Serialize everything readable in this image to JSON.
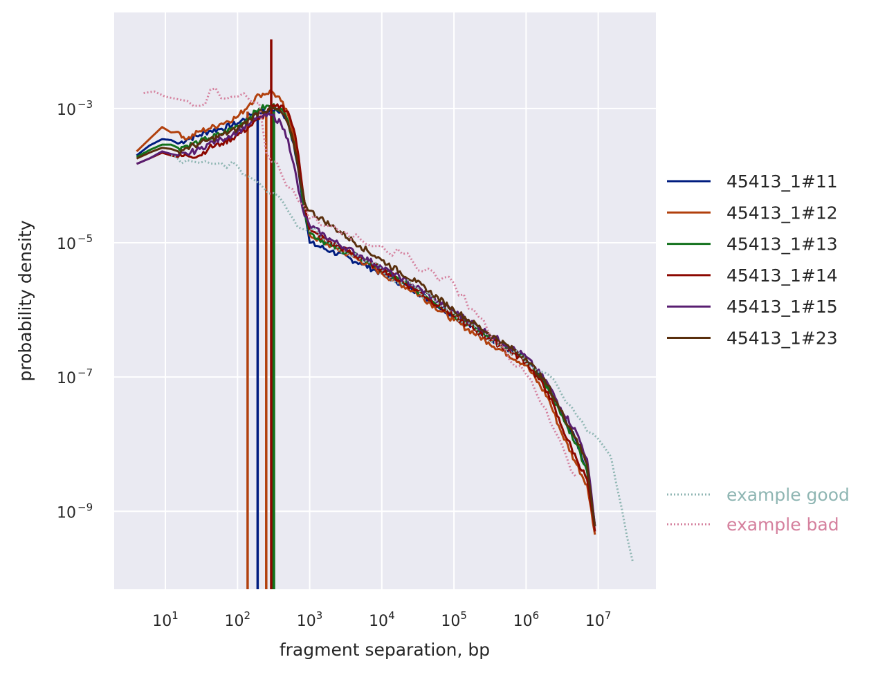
{
  "chart_data": {
    "type": "line",
    "title": "",
    "xlabel": "fragment separation, bp",
    "ylabel": "probability density",
    "xscale": "log",
    "yscale": "log",
    "xlim": [
      1.95,
      63000000
    ],
    "ylim": [
      6.9e-11,
      0.027
    ],
    "grid": true,
    "legend_position": "right",
    "x_ticks": [
      {
        "value": 10,
        "base": "10",
        "exp": "1"
      },
      {
        "value": 100,
        "base": "10",
        "exp": "2"
      },
      {
        "value": 1000,
        "base": "10",
        "exp": "3"
      },
      {
        "value": 10000,
        "base": "10",
        "exp": "4"
      },
      {
        "value": 100000,
        "base": "10",
        "exp": "5"
      },
      {
        "value": 1000000,
        "base": "10",
        "exp": "6"
      },
      {
        "value": 10000000,
        "base": "10",
        "exp": "7"
      }
    ],
    "y_ticks": [
      {
        "value": 0.001,
        "base": "10",
        "exp": "−3"
      },
      {
        "value": 1e-05,
        "base": "10",
        "exp": "−5"
      },
      {
        "value": 1e-07,
        "base": "10",
        "exp": "−7"
      },
      {
        "value": 1e-09,
        "base": "10",
        "exp": "−9"
      }
    ],
    "series": [
      {
        "name": "45413_1#11",
        "color": "#001c7f",
        "style": "solid",
        "x": [
          4,
          6,
          9,
          12,
          15,
          20,
          30,
          40,
          60,
          100,
          150,
          200,
          300,
          400,
          500,
          600,
          700,
          850,
          1000,
          2000,
          5000,
          10000,
          30000,
          100000,
          300000,
          1000000,
          2000000,
          3000000,
          5000000,
          7000000,
          9000000
        ],
        "y": [
          0.0002,
          0.00028,
          0.00035,
          0.00034,
          0.0003,
          0.00035,
          0.0004,
          0.00046,
          0.0005,
          0.0006,
          0.0008,
          0.0009,
          0.00095,
          0.0009,
          0.0006,
          0.0003,
          0.00012,
          3e-05,
          1e-05,
          7.5e-06,
          5e-06,
          3.5e-06,
          1.9e-06,
          8e-07,
          4e-07,
          1.8e-07,
          7e-08,
          3e-08,
          1.1e-08,
          4e-09,
          6e-10
        ],
        "spikes": [
          190
        ]
      },
      {
        "name": "45413_1#12",
        "color": "#b1400d",
        "style": "solid",
        "x": [
          4,
          6,
          9,
          12,
          15,
          20,
          30,
          40,
          60,
          100,
          150,
          200,
          300,
          400,
          500,
          600,
          700,
          850,
          1000,
          2000,
          5000,
          10000,
          30000,
          100000,
          300000,
          1000000,
          2000000,
          3000000,
          5000000,
          7000000,
          9000000
        ],
        "y": [
          0.00023,
          0.00035,
          0.00053,
          0.00044,
          0.00045,
          0.00035,
          0.00046,
          0.0005,
          0.0006,
          0.00075,
          0.0012,
          0.0016,
          0.0018,
          0.0013,
          0.0008,
          0.0004,
          0.00014,
          3e-05,
          1.3e-05,
          9e-06,
          5.5e-06,
          3.5e-06,
          1.8e-06,
          7e-07,
          3.3e-07,
          1.5e-07,
          5e-08,
          1.6e-08,
          5e-09,
          2.5e-09,
          4.5e-10
        ],
        "spikes": [
          138,
          250
        ]
      },
      {
        "name": "45413_1#13",
        "color": "#12711c",
        "style": "solid",
        "x": [
          4,
          6,
          9,
          12,
          15,
          20,
          30,
          40,
          60,
          100,
          150,
          200,
          300,
          400,
          500,
          600,
          700,
          850,
          1000,
          2000,
          5000,
          10000,
          30000,
          100000,
          300000,
          1000000,
          2000000,
          3000000,
          5000000,
          7000000,
          9000000
        ],
        "y": [
          0.00019,
          0.00024,
          0.00029,
          0.00029,
          0.00026,
          0.00028,
          0.00032,
          0.00036,
          0.00042,
          0.00055,
          0.00075,
          0.001,
          0.0011,
          0.001,
          0.00065,
          0.00032,
          0.00013,
          3e-05,
          1.4e-05,
          9e-06,
          6e-06,
          4e-06,
          2e-06,
          8.5e-07,
          4e-07,
          1.8e-07,
          7e-08,
          2.8e-08,
          1e-08,
          4e-09,
          6e-10
        ],
        "spikes": [
          305,
          320
        ]
      },
      {
        "name": "45413_1#14",
        "color": "#8c0800",
        "style": "solid",
        "x": [
          4,
          6,
          9,
          12,
          15,
          20,
          30,
          40,
          60,
          100,
          150,
          200,
          300,
          400,
          500,
          600,
          700,
          850,
          1000,
          2000,
          5000,
          10000,
          30000,
          100000,
          300000,
          1000000,
          2000000,
          3000000,
          5000000,
          7000000,
          9000000
        ],
        "y": [
          0.00015,
          0.00018,
          0.00022,
          0.0002,
          0.00019,
          0.0002,
          0.0002,
          0.00026,
          0.0003,
          0.0004,
          0.00055,
          0.0007,
          0.001,
          0.0011,
          0.0009,
          0.0005,
          0.0002,
          4e-05,
          1.5e-05,
          1e-05,
          6e-06,
          4e-06,
          2e-06,
          8e-07,
          3.8e-07,
          1.7e-07,
          6e-08,
          2e-08,
          6e-09,
          3e-09,
          5e-10
        ],
        "spikes": [
          293
        ],
        "spike_top": 0.0107
      },
      {
        "name": "45413_1#15",
        "color": "#591e71",
        "style": "solid",
        "x": [
          4,
          6,
          9,
          12,
          15,
          20,
          30,
          40,
          60,
          100,
          150,
          200,
          300,
          400,
          500,
          600,
          700,
          850,
          1000,
          2000,
          5000,
          10000,
          30000,
          100000,
          300000,
          1000000,
          2000000,
          3000000,
          5000000,
          7000000,
          9000000
        ],
        "y": [
          0.00015,
          0.00018,
          0.00023,
          0.00021,
          0.0002,
          0.00021,
          0.00025,
          0.0003,
          0.00035,
          0.00045,
          0.0006,
          0.00075,
          0.0008,
          0.0006,
          0.00035,
          0.00015,
          6e-05,
          2.5e-05,
          1.8e-05,
          1.1e-05,
          6.5e-06,
          4.3e-06,
          2.2e-06,
          9.5e-07,
          4.5e-07,
          2e-07,
          8e-08,
          3.5e-08,
          1.5e-08,
          6e-09,
          6e-10
        ],
        "spikes": []
      },
      {
        "name": "45413_1#23",
        "color": "#592f0d",
        "style": "solid",
        "x": [
          4,
          6,
          9,
          12,
          15,
          20,
          30,
          40,
          60,
          100,
          150,
          200,
          300,
          400,
          500,
          600,
          700,
          850,
          1000,
          2000,
          5000,
          10000,
          30000,
          100000,
          300000,
          1000000,
          2000000,
          3000000,
          5000000,
          7000000,
          9000000
        ],
        "y": [
          0.00018,
          0.00022,
          0.00026,
          0.00025,
          0.00023,
          0.00026,
          0.0003,
          0.00034,
          0.0004,
          0.0005,
          0.0007,
          0.0009,
          0.001,
          0.0009,
          0.0006,
          0.0003,
          0.00012,
          4e-05,
          3e-05,
          1.8e-05,
          9e-06,
          5.5e-06,
          2.6e-06,
          1e-06,
          4.5e-07,
          1.9e-07,
          7.5e-08,
          3.2e-08,
          1.2e-08,
          5e-09,
          6e-10
        ],
        "spikes": []
      },
      {
        "name": "example good",
        "color": "#8fb6b3",
        "style": "dotted",
        "x": [
          12,
          20,
          30,
          50,
          100,
          200,
          500,
          800,
          1000,
          10000,
          100000,
          1000000,
          1500000,
          2000000,
          3000000,
          5000000,
          10000000,
          15000000,
          30000000
        ],
        "y": [
          0.0002,
          0.00017,
          0.000155,
          0.00015,
          0.00014,
          7.7e-05,
          3e-05,
          1.6e-05,
          1.5e-05,
          4e-06,
          9e-07,
          1.6e-07,
          1.2e-07,
          1.1e-07,
          6e-08,
          2.7e-08,
          1.2e-08,
          6.5e-09,
          1.8e-10
        ],
        "spikes": []
      },
      {
        "name": "example bad",
        "color": "#d5819e",
        "style": "dotted",
        "x": [
          5,
          7,
          10,
          20,
          30,
          50,
          70,
          100,
          150,
          200,
          250,
          300,
          400,
          700,
          1000,
          10000,
          100000,
          300000,
          1000000,
          3000000,
          5000000
        ],
        "y": [
          0.0017,
          0.0018,
          0.0015,
          0.0013,
          0.0011,
          0.002,
          0.0014,
          0.0015,
          0.0013,
          0.0012,
          0.00022,
          0.00016,
          0.00011,
          4.2e-05,
          2.3e-05,
          9e-06,
          2.5e-06,
          4.7e-07,
          1.1e-07,
          1.1e-08,
          3.2e-09
        ],
        "spikes": []
      }
    ]
  }
}
